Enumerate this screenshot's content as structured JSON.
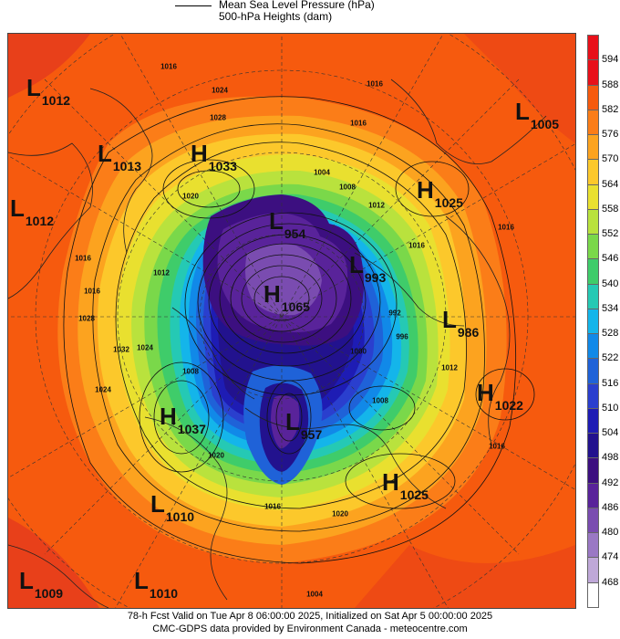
{
  "legend": {
    "line1": "Mean Sea Level Pressure (hPa)",
    "line2": "500-hPa Heights (dam)"
  },
  "colorbar": {
    "labels": [
      "594",
      "588",
      "582",
      "576",
      "570",
      "564",
      "558",
      "552",
      "546",
      "540",
      "534",
      "528",
      "522",
      "516",
      "510",
      "504",
      "498",
      "492",
      "486",
      "480",
      "474",
      "468"
    ],
    "colors": [
      "#e8101a",
      "#f65a0e",
      "#fb7d18",
      "#fca31f",
      "#fcc82b",
      "#e9e02f",
      "#b9e23d",
      "#7ad84a",
      "#3fcc6a",
      "#25c9b4",
      "#14b5ea",
      "#1189e8",
      "#1f62d8",
      "#2a3fce",
      "#1e1cb4",
      "#22128e",
      "#3c0f80",
      "#59239a",
      "#7a4cb0",
      "#9a78c4",
      "#bfa8d8",
      "#ece2f4"
    ]
  },
  "systems": [
    {
      "type": "L",
      "value": "1012"
    },
    {
      "type": "L",
      "value": "1013"
    },
    {
      "type": "H",
      "value": "1033"
    },
    {
      "type": "L",
      "value": "1012"
    },
    {
      "type": "L",
      "value": "954"
    },
    {
      "type": "L",
      "value": "993"
    },
    {
      "type": "H",
      "value": "1065"
    },
    {
      "type": "L",
      "value": "986"
    },
    {
      "type": "H",
      "value": "1025"
    },
    {
      "type": "L",
      "value": "1005"
    },
    {
      "type": "H",
      "value": "1022"
    },
    {
      "type": "L",
      "value": "957"
    },
    {
      "type": "H",
      "value": "1037"
    },
    {
      "type": "H",
      "value": "1025"
    },
    {
      "type": "L",
      "value": "1010"
    },
    {
      "type": "L",
      "value": "1009"
    },
    {
      "type": "L",
      "value": "1010"
    }
  ],
  "isobar_labels": [
    "1016",
    "1024",
    "1028",
    "1020",
    "1016",
    "1016",
    "1004",
    "1008",
    "1012",
    "1016",
    "1016",
    "992",
    "996",
    "1000",
    "1008",
    "1012",
    "1016",
    "1020",
    "1028",
    "1032",
    "1024",
    "1012",
    "1024",
    "1016",
    "1016",
    "1020",
    "1016",
    "1008",
    "1004"
  ],
  "footer": {
    "line1": "78-h Fcst Valid on Tue Apr  8 06:00:00 2025, Initialized on Sat Apr  5 00:00:00 2025",
    "line2": "CMC-GDPS data provided by Environment Canada - meteocentre.com"
  }
}
